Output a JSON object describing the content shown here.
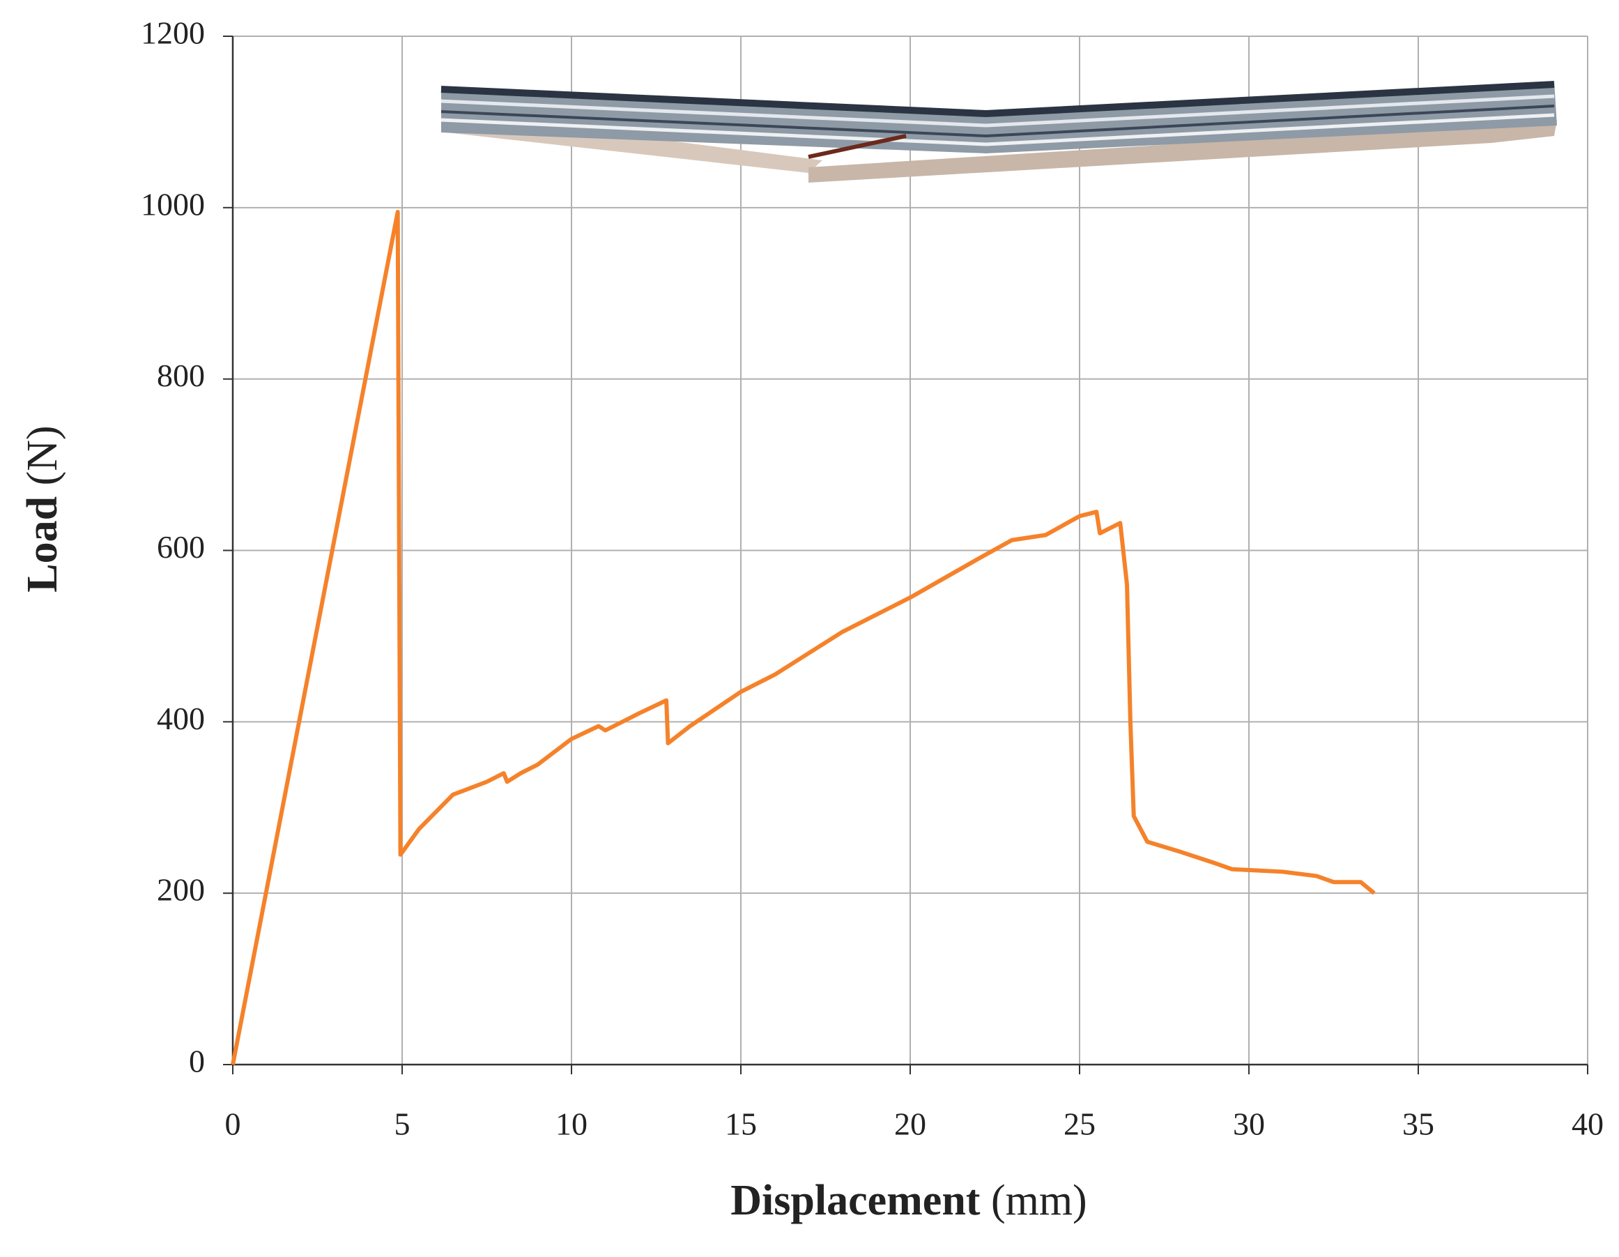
{
  "chart_data": {
    "type": "line",
    "x_label": [
      "Displacement",
      "(mm)"
    ],
    "y_label": [
      "Load",
      "(N)"
    ],
    "x": [
      0,
      4.87,
      4.95,
      5.5,
      6.5,
      7.5,
      8,
      8.1,
      8.5,
      9,
      10,
      10.8,
      11,
      12,
      12.8,
      12.85,
      13.5,
      15,
      16,
      18,
      19,
      20,
      22,
      23,
      24,
      25,
      25.5,
      25.6,
      26.2,
      26.4,
      26.5,
      26.6,
      27,
      28,
      29,
      29.5,
      31,
      32,
      32.5,
      33.3,
      33.7
    ],
    "values": [
      0,
      995,
      245,
      275,
      315,
      330,
      340,
      330,
      340,
      350,
      380,
      395,
      390,
      410,
      425,
      375,
      395,
      435,
      455,
      505,
      525,
      545,
      590,
      612,
      618,
      640,
      645,
      620,
      632,
      560,
      400,
      290,
      260,
      248,
      235,
      228,
      225,
      220,
      213,
      213,
      200
    ],
    "color": "#f5822a",
    "xlim": [
      0,
      40
    ],
    "xticks": [
      0,
      5,
      10,
      15,
      20,
      25,
      30,
      35,
      40
    ],
    "ylim": [
      0,
      1200
    ],
    "yticks": [
      0,
      200,
      400,
      600,
      800,
      1000,
      1200
    ],
    "grid": true
  }
}
